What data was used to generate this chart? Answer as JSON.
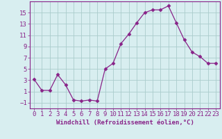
{
  "x": [
    0,
    1,
    2,
    3,
    4,
    5,
    6,
    7,
    8,
    9,
    10,
    11,
    12,
    13,
    14,
    15,
    16,
    17,
    18,
    19,
    20,
    21,
    22,
    23
  ],
  "y": [
    3.2,
    1.2,
    1.2,
    4.0,
    2.2,
    -0.5,
    -0.7,
    -0.5,
    -0.7,
    5.0,
    6.0,
    9.5,
    11.2,
    13.2,
    15.0,
    15.5,
    15.5,
    16.2,
    13.2,
    10.2,
    8.0,
    7.2,
    6.0,
    6.0
  ],
  "line_color": "#882288",
  "marker": "D",
  "marker_size": 2.5,
  "bg_color": "#d8eef0",
  "grid_color": "#aacccc",
  "xlabel": "Windchill (Refroidissement éolien,°C)",
  "xlim": [
    -0.5,
    23.5
  ],
  "ylim": [
    -2,
    17
  ],
  "yticks": [
    -1,
    1,
    3,
    5,
    7,
    9,
    11,
    13,
    15
  ],
  "xticks": [
    0,
    1,
    2,
    3,
    4,
    5,
    6,
    7,
    8,
    9,
    10,
    11,
    12,
    13,
    14,
    15,
    16,
    17,
    18,
    19,
    20,
    21,
    22,
    23
  ],
  "label_color": "#882288",
  "tick_color": "#882288",
  "axis_color": "#882288",
  "font_size": 6.5
}
